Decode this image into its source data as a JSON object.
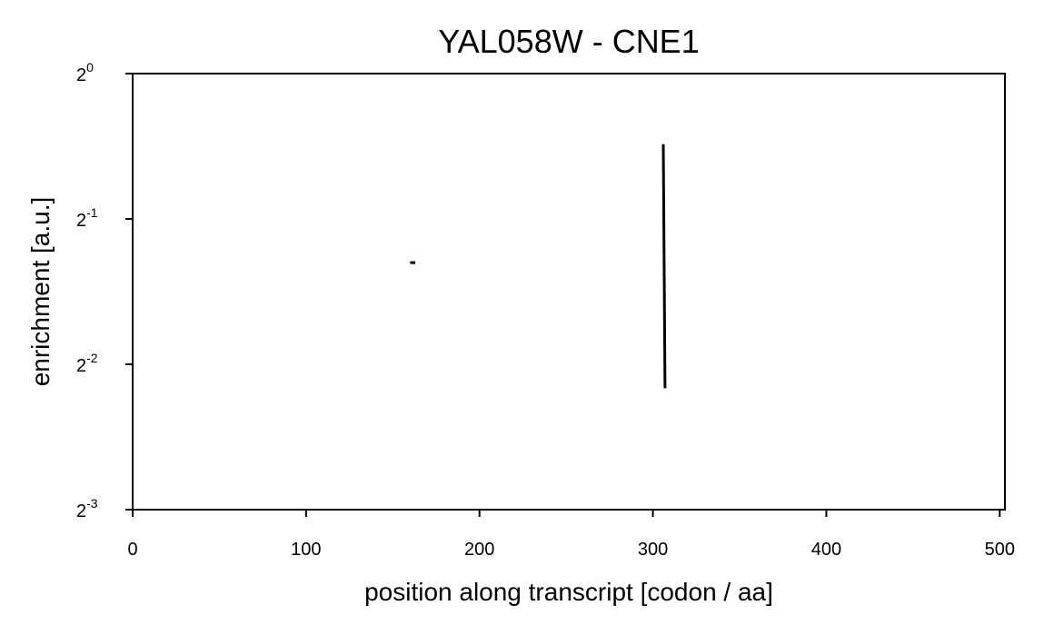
{
  "chart_data": {
    "type": "line",
    "title": "YAL058W - CNE1",
    "xlabel": "position along transcript [codon / aa]",
    "ylabel": "enrichment [a.u.]",
    "xlim": [
      0,
      503
    ],
    "ylim_log2": [
      -3,
      0
    ],
    "y_scale": "log2",
    "x_ticks": [
      0,
      100,
      200,
      300,
      400,
      500
    ],
    "y_ticks": [
      {
        "base": "2",
        "exp": "-3"
      },
      {
        "base": "2",
        "exp": "-2"
      },
      {
        "base": "2",
        "exp": "-1"
      },
      {
        "base": "2",
        "exp": "0"
      }
    ],
    "grid": false,
    "series": [
      {
        "color": "#000000",
        "segments": [
          {
            "x": [
              160,
              163
            ],
            "y": [
              0.406,
              0.406
            ]
          },
          {
            "x": [
              306,
              307
            ],
            "y": [
              0.714,
              0.223
            ]
          }
        ]
      }
    ]
  }
}
